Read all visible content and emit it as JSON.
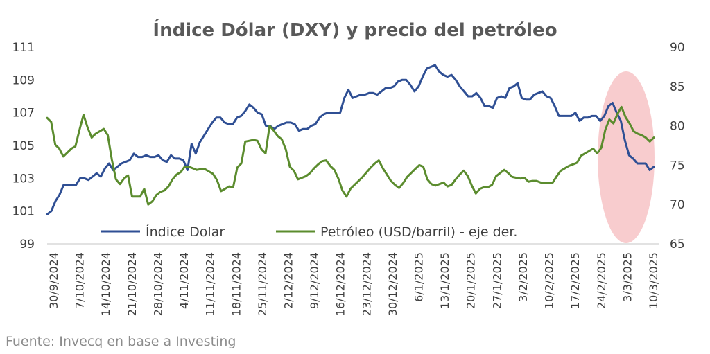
{
  "chart_data": {
    "type": "line",
    "title": "Índice Dólar (DXY) y precio del petróleo",
    "source": "Fuente: Invecq en base a Investing",
    "x_labels": [
      "30/9/2024",
      "7/10/2024",
      "14/10/2024",
      "21/10/2024",
      "28/10/2024",
      "4/11/2024",
      "11/11/2024",
      "18/11/2024",
      "25/11/2024",
      "2/12/2024",
      "9/12/2024",
      "16/12/2024",
      "23/12/2024",
      "30/12/2024",
      "6/1/2025",
      "13/1/2025",
      "20/1/2025",
      "27/1/2025",
      "3/2/2025",
      "10/2/2025",
      "17/2/2025",
      "24/2/2025",
      "3/3/2025",
      "10/3/2025"
    ],
    "left_axis": {
      "ticks": [
        "99",
        "101",
        "103",
        "105",
        "107",
        "109",
        "111"
      ],
      "ylim": [
        99,
        111
      ]
    },
    "right_axis": {
      "ticks": [
        "65",
        "70",
        "75",
        "80",
        "85",
        "90"
      ],
      "ylim": [
        65,
        90
      ]
    },
    "legend_position": "bottom-center",
    "series": [
      {
        "name": "Índice Dolar",
        "axis": "left",
        "color": "#2F4F94",
        "values": [
          100.8,
          101.0,
          101.6,
          102.0,
          102.6,
          102.6,
          102.6,
          102.6,
          103.0,
          103.0,
          102.9,
          103.1,
          103.3,
          103.1,
          103.6,
          103.9,
          103.5,
          103.7,
          103.9,
          104.0,
          104.1,
          104.5,
          104.3,
          104.3,
          104.4,
          104.3,
          104.3,
          104.4,
          104.1,
          104.0,
          104.4,
          104.2,
          104.2,
          104.1,
          103.5,
          105.1,
          104.5,
          105.2,
          105.6,
          106.0,
          106.4,
          106.7,
          106.7,
          106.4,
          106.3,
          106.3,
          106.7,
          106.8,
          107.1,
          107.5,
          107.3,
          107.0,
          106.9,
          106.2,
          106.2,
          106.0,
          106.2,
          106.3,
          106.4,
          106.4,
          106.3,
          105.9,
          106.0,
          106.0,
          106.2,
          106.3,
          106.7,
          106.9,
          107.0,
          107.0,
          107.0,
          107.0,
          107.9,
          108.4,
          107.9,
          108.0,
          108.1,
          108.1,
          108.2,
          108.2,
          108.1,
          108.3,
          108.5,
          108.5,
          108.6,
          108.9,
          109.0,
          109.0,
          108.7,
          108.3,
          108.6,
          109.2,
          109.7,
          109.8,
          109.9,
          109.5,
          109.3,
          109.2,
          109.3,
          109.0,
          108.6,
          108.3,
          108.0,
          108.0,
          108.2,
          107.9,
          107.4,
          107.4,
          107.3,
          107.9,
          108.0,
          107.9,
          108.5,
          108.6,
          108.8,
          107.9,
          107.8,
          107.8,
          108.1,
          108.2,
          108.3,
          108.0,
          107.9,
          107.4,
          106.8,
          106.8,
          106.8,
          106.8,
          107.0,
          106.5,
          106.7,
          106.7,
          106.8,
          106.8,
          106.5,
          106.8,
          107.4,
          107.6,
          107.0,
          106.5,
          105.3,
          104.4,
          104.2,
          103.9,
          103.9,
          103.9,
          103.5,
          103.7
        ]
      },
      {
        "name": "Petróleo (USD/barril) - eje der.",
        "axis": "right",
        "color": "#5B8C2E",
        "values": [
          81.0,
          80.5,
          77.6,
          77.1,
          76.1,
          76.6,
          77.1,
          77.4,
          79.5,
          81.4,
          79.8,
          78.5,
          79.0,
          79.3,
          79.6,
          78.8,
          75.7,
          73.2,
          72.6,
          73.3,
          73.7,
          71.0,
          71.0,
          71.0,
          72.0,
          70.0,
          70.4,
          71.2,
          71.6,
          71.8,
          72.3,
          73.2,
          73.8,
          74.1,
          74.8,
          74.8,
          74.6,
          74.4,
          74.5,
          74.5,
          74.2,
          73.9,
          73.1,
          71.7,
          72.0,
          72.3,
          72.2,
          74.7,
          75.2,
          78.0,
          78.1,
          78.2,
          78.1,
          77.0,
          76.5,
          80.0,
          79.4,
          78.7,
          78.3,
          77.0,
          74.8,
          74.3,
          73.2,
          73.4,
          73.6,
          74.0,
          74.6,
          75.1,
          75.5,
          75.6,
          74.9,
          74.4,
          73.3,
          71.8,
          71.0,
          72.0,
          72.5,
          73.0,
          73.5,
          74.1,
          74.7,
          75.2,
          75.6,
          74.6,
          73.8,
          73.0,
          72.5,
          72.1,
          72.7,
          73.5,
          74.0,
          74.5,
          75.0,
          74.8,
          73.2,
          72.6,
          72.4,
          72.6,
          72.8,
          72.3,
          72.5,
          73.2,
          73.8,
          74.3,
          73.6,
          72.4,
          71.4,
          72.0,
          72.2,
          72.2,
          72.5,
          73.6,
          74.0,
          74.4,
          74.0,
          73.5,
          73.4,
          73.3,
          73.4,
          72.9,
          73.0,
          73.0,
          72.8,
          72.7,
          72.7,
          72.8,
          73.6,
          74.3,
          74.6,
          74.9,
          75.1,
          75.3,
          76.2,
          76.5,
          76.8,
          77.1,
          76.5,
          77.2,
          79.5,
          80.8,
          80.3,
          81.5,
          82.4,
          81.1,
          80.3,
          79.3,
          79.0,
          78.8,
          78.5,
          78.0,
          78.5
        ]
      }
    ]
  }
}
